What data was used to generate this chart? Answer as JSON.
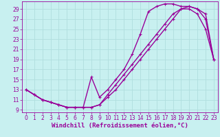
{
  "bg_color": "#c8f0f0",
  "line_color": "#990099",
  "grid_color": "#b0dede",
  "xlabel": "Windchill (Refroidissement éolien,°C)",
  "xlim": [
    -0.5,
    23.5
  ],
  "ylim": [
    8.5,
    30.5
  ],
  "yticks": [
    9,
    11,
    13,
    15,
    17,
    19,
    21,
    23,
    25,
    27,
    29
  ],
  "xticks": [
    0,
    1,
    2,
    3,
    4,
    5,
    6,
    7,
    8,
    9,
    10,
    11,
    12,
    13,
    14,
    15,
    16,
    17,
    18,
    19,
    20,
    21,
    22,
    23
  ],
  "line1_x": [
    0,
    1,
    2,
    3,
    4,
    5,
    6,
    7,
    8,
    9,
    10,
    11,
    12,
    13,
    14,
    15,
    16,
    17,
    18,
    19,
    20,
    21,
    22,
    23
  ],
  "line1_y": [
    13,
    12,
    11,
    10.5,
    10,
    9.5,
    9.5,
    9.5,
    9.5,
    10,
    12,
    14,
    16,
    18,
    20,
    22,
    24,
    26,
    28,
    29,
    29,
    28,
    25,
    19
  ],
  "line2_x": [
    0,
    1,
    2,
    3,
    4,
    5,
    6,
    7,
    8,
    9,
    10,
    11,
    12,
    13,
    14,
    15,
    16,
    17,
    18,
    19,
    20,
    21,
    22,
    23
  ],
  "line2_y": [
    13,
    12,
    11,
    10.5,
    10,
    9.5,
    9.5,
    9.5,
    15.5,
    11.5,
    13,
    15,
    17,
    20,
    24,
    28.5,
    29.5,
    30,
    30,
    29.5,
    29.5,
    29,
    28,
    19
  ],
  "line3_x": [
    0,
    1,
    2,
    3,
    4,
    5,
    6,
    7,
    8,
    9,
    10,
    11,
    12,
    13,
    14,
    15,
    16,
    17,
    18,
    19,
    20,
    21,
    22,
    23
  ],
  "line3_y": [
    13,
    12,
    11,
    10.5,
    10,
    9.5,
    9.5,
    9.5,
    9.5,
    10,
    11.5,
    13,
    15,
    17,
    19,
    21,
    23,
    25,
    27,
    29,
    29.5,
    29,
    27,
    19
  ],
  "marker": "+",
  "markersize": 3,
  "linewidth": 1.0,
  "tick_fontsize": 5.5,
  "xlabel_fontsize": 6.5
}
